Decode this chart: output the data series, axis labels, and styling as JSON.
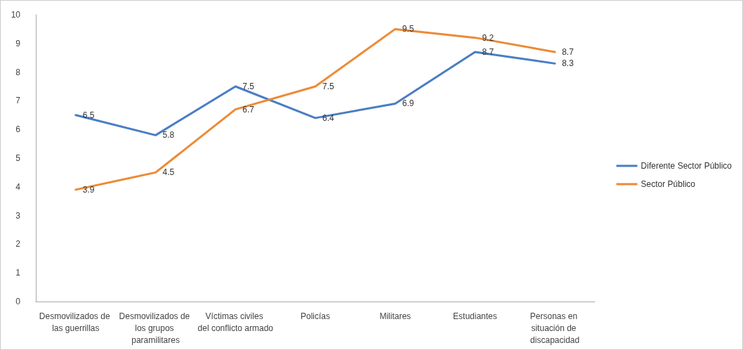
{
  "chart_data": {
    "type": "line",
    "categories": [
      "Desmovilizados de las guerrillas",
      "Desmovilizados de los grupos paramilitares",
      "Víctimas civiles del conflicto armado",
      "Policías",
      "Militares",
      "Estudiantes",
      "Personas en situación de discapacidad"
    ],
    "series": [
      {
        "name": "Diferente Sector Público",
        "color": "#4a7dc4",
        "values": [
          6.5,
          5.8,
          7.5,
          6.4,
          6.9,
          8.7,
          8.3
        ]
      },
      {
        "name": "Sector Público",
        "color": "#ed8a35",
        "values": [
          3.9,
          4.5,
          6.7,
          7.5,
          9.5,
          9.2,
          8.7
        ]
      }
    ],
    "ylim": [
      0,
      10
    ],
    "yticks": [
      0,
      1,
      2,
      3,
      4,
      5,
      6,
      7,
      8,
      9,
      10
    ],
    "grid": false,
    "legend": "right",
    "marker": "none",
    "line_style": "solid",
    "data_labels": true
  }
}
